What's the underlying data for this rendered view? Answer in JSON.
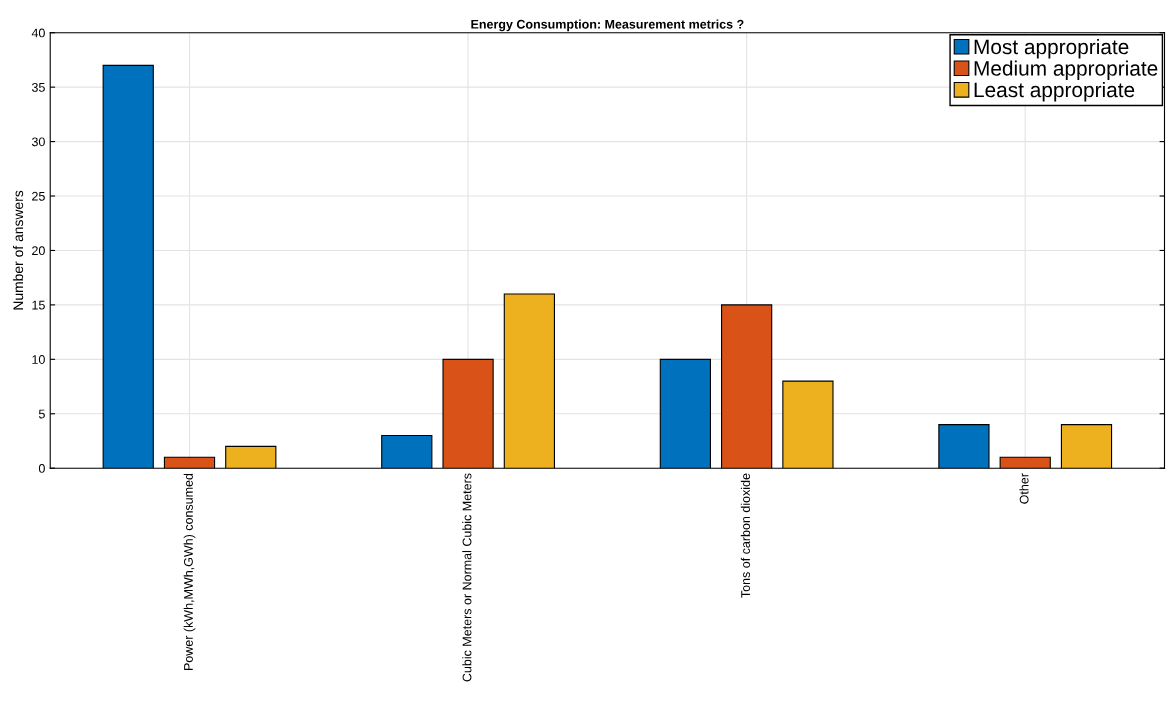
{
  "chart_data": {
    "type": "bar",
    "title": "Energy Consumption: Measurement metrics ?",
    "ylabel": "Number of answers",
    "categories": [
      "Power (kWh,MWh,GWh) consumed",
      "Cubic Meters or Normal Cubic Meters",
      "Tons of carbon dioxide",
      "Other"
    ],
    "series": [
      {
        "name": "Most appropriate",
        "color": "#0072bd",
        "values": [
          37,
          3,
          10,
          4
        ]
      },
      {
        "name": "Medium appropriate",
        "color": "#d95319",
        "values": [
          1,
          10,
          15,
          1
        ]
      },
      {
        "name": "Least appropriate",
        "color": "#edb120",
        "values": [
          2,
          16,
          8,
          4
        ]
      }
    ],
    "ylim": [
      0,
      40
    ],
    "yticks": [
      0,
      5,
      10,
      15,
      20,
      25,
      30,
      35,
      40
    ],
    "grid": true,
    "legend": "top right"
  }
}
